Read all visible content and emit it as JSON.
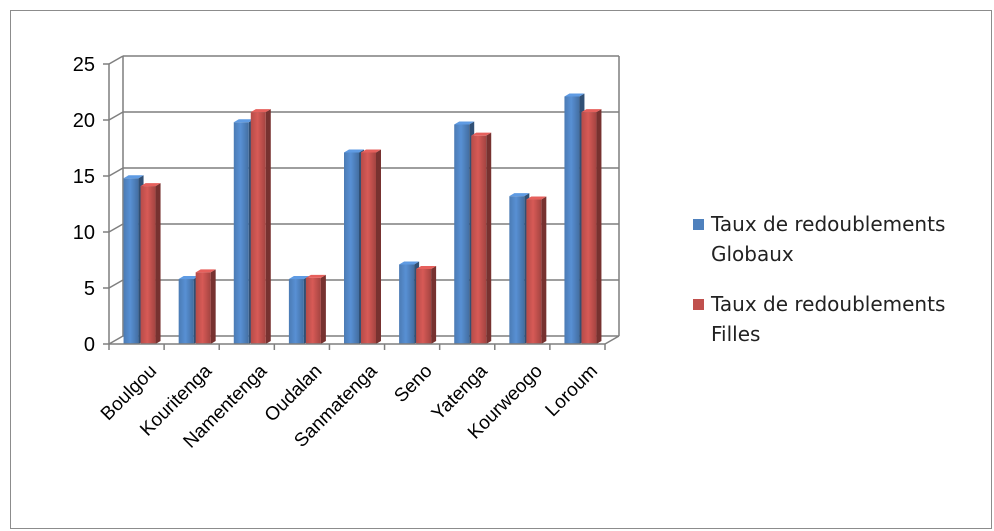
{
  "chart_data": {
    "type": "bar",
    "categories": [
      "Boulgou",
      "Kouritenga",
      "Namentenga",
      "Oudalan",
      "Sanmatenga",
      "Seno",
      "Yatenga",
      "Kourweogo",
      "Loroum"
    ],
    "series": [
      {
        "name": "Taux de redoublements Globaux",
        "values": [
          14.8,
          5.8,
          19.8,
          5.8,
          17.1,
          7.1,
          19.6,
          13.2,
          22.1
        ],
        "color": "#4f81bd"
      },
      {
        "name": "Taux de redoublements Filles",
        "values": [
          14.1,
          6.4,
          20.7,
          5.9,
          17.1,
          6.7,
          18.6,
          12.9,
          20.7
        ],
        "color": "#c0504d"
      }
    ],
    "ylim": [
      0,
      25
    ],
    "yticks": [
      "0",
      "5",
      "10",
      "15",
      "20",
      "25"
    ],
    "grid": true,
    "legend_position": "right",
    "three_d": true
  }
}
